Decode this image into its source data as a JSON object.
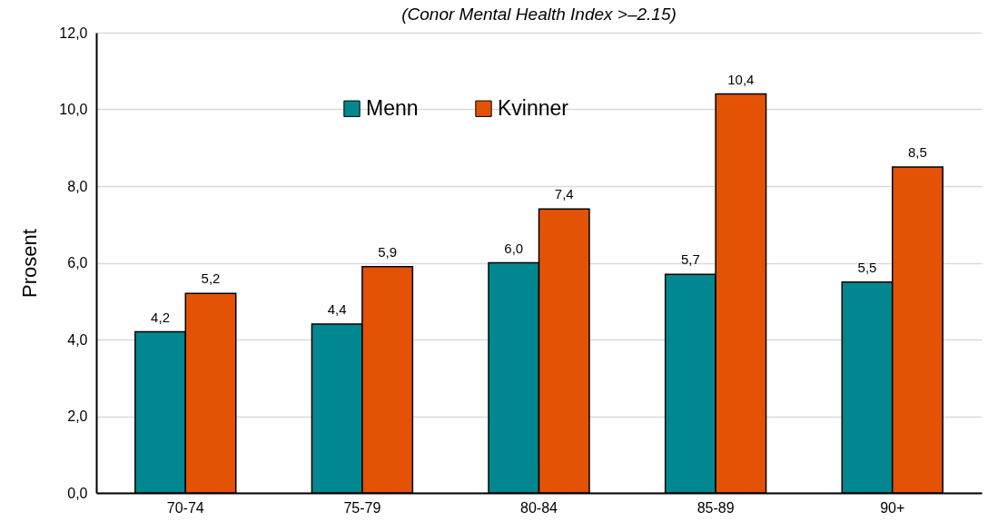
{
  "chart_data": {
    "type": "bar",
    "subtitle": "(Conor Mental Health Index >–2.15)",
    "ylabel": "Prosent",
    "categories": [
      "70-74",
      "75-79",
      "80-84",
      "85-89",
      "90+"
    ],
    "series": [
      {
        "name": "Menn",
        "color": "#00878f",
        "values": [
          4.2,
          4.4,
          6.0,
          5.7,
          5.5
        ],
        "value_labels": [
          "4,2",
          "4,4",
          "6,0",
          "5,7",
          "5,5"
        ]
      },
      {
        "name": "Kvinner",
        "color": "#e35205",
        "values": [
          5.2,
          5.9,
          7.4,
          10.4,
          8.5
        ],
        "value_labels": [
          "5,2",
          "5,9",
          "7,4",
          "10,4",
          "8,5"
        ]
      }
    ],
    "ylim": [
      0,
      12
    ],
    "yticks": [
      {
        "value": 0,
        "label": "0,0"
      },
      {
        "value": 2,
        "label": "2,0"
      },
      {
        "value": 4,
        "label": "4,0"
      },
      {
        "value": 6,
        "label": "6,0"
      },
      {
        "value": 8,
        "label": "8,0"
      },
      {
        "value": 10,
        "label": "10,0"
      },
      {
        "value": 12,
        "label": "12,0"
      }
    ],
    "grid": "y",
    "legend": "top"
  }
}
